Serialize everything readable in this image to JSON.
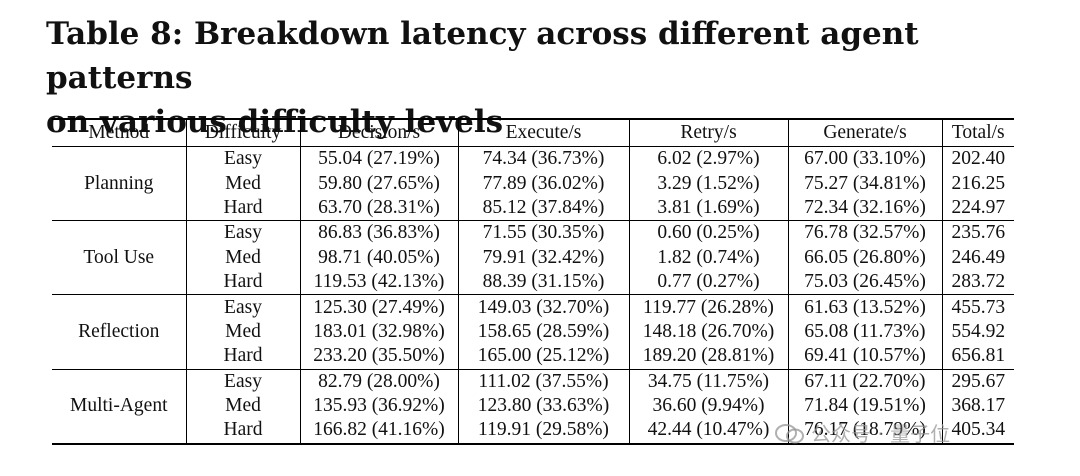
{
  "title_line1": "Table 8: Breakdown latency across different agent patterns",
  "title_line2": "on various difficulty levels",
  "headers": [
    "Method",
    "Difficulty",
    "Decision/s",
    "Execute/s",
    "Retry/s",
    "Generate/s",
    "Total/s"
  ],
  "groups": [
    {
      "method": "Planning",
      "rows": [
        {
          "difficulty": "Easy",
          "decision": "55.04 (27.19%)",
          "execute": "74.34 (36.73%)",
          "retry": "6.02 (2.97%)",
          "generate": "67.00 (33.10%)",
          "total": "202.40"
        },
        {
          "difficulty": "Med",
          "decision": "59.80 (27.65%)",
          "execute": "77.89 (36.02%)",
          "retry": "3.29 (1.52%)",
          "generate": "75.27 (34.81%)",
          "total": "216.25"
        },
        {
          "difficulty": "Hard",
          "decision": "63.70 (28.31%)",
          "execute": "85.12 (37.84%)",
          "retry": "3.81 (1.69%)",
          "generate": "72.34 (32.16%)",
          "total": "224.97"
        }
      ]
    },
    {
      "method": "Tool Use",
      "rows": [
        {
          "difficulty": "Easy",
          "decision": "86.83 (36.83%)",
          "execute": "71.55 (30.35%)",
          "retry": "0.60 (0.25%)",
          "generate": "76.78 (32.57%)",
          "total": "235.76"
        },
        {
          "difficulty": "Med",
          "decision": "98.71 (40.05%)",
          "execute": "79.91 (32.42%)",
          "retry": "1.82 (0.74%)",
          "generate": "66.05 (26.80%)",
          "total": "246.49"
        },
        {
          "difficulty": "Hard",
          "decision": "119.53 (42.13%)",
          "execute": "88.39 (31.15%)",
          "retry": "0.77 (0.27%)",
          "generate": "75.03 (26.45%)",
          "total": "283.72"
        }
      ]
    },
    {
      "method": "Reflection",
      "rows": [
        {
          "difficulty": "Easy",
          "decision": "125.30 (27.49%)",
          "execute": "149.03 (32.70%)",
          "retry": "119.77 (26.28%)",
          "generate": "61.63 (13.52%)",
          "total": "455.73"
        },
        {
          "difficulty": "Med",
          "decision": "183.01 (32.98%)",
          "execute": "158.65 (28.59%)",
          "retry": "148.18 (26.70%)",
          "generate": "65.08 (11.73%)",
          "total": "554.92"
        },
        {
          "difficulty": "Hard",
          "decision": "233.20 (35.50%)",
          "execute": "165.00 (25.12%)",
          "retry": "189.20 (28.81%)",
          "generate": "69.41 (10.57%)",
          "total": "656.81"
        }
      ]
    },
    {
      "method": "Multi-Agent",
      "rows": [
        {
          "difficulty": "Easy",
          "decision": "82.79 (28.00%)",
          "execute": "111.02 (37.55%)",
          "retry": "34.75 (11.75%)",
          "generate": "67.11 (22.70%)",
          "total": "295.67"
        },
        {
          "difficulty": "Med",
          "decision": "135.93 (36.92%)",
          "execute": "123.80 (33.63%)",
          "retry": "36.60 (9.94%)",
          "generate": "71.84 (19.51%)",
          "total": "368.17"
        },
        {
          "difficulty": "Hard",
          "decision": "166.82 (41.16%)",
          "execute": "119.91 (29.58%)",
          "retry": "42.44 (10.47%)",
          "generate": "76.17 (18.79%)",
          "total": "405.34"
        }
      ]
    }
  ],
  "watermark": {
    "text": "公众号 · 量子位",
    "icon": "wechat-icon"
  }
}
